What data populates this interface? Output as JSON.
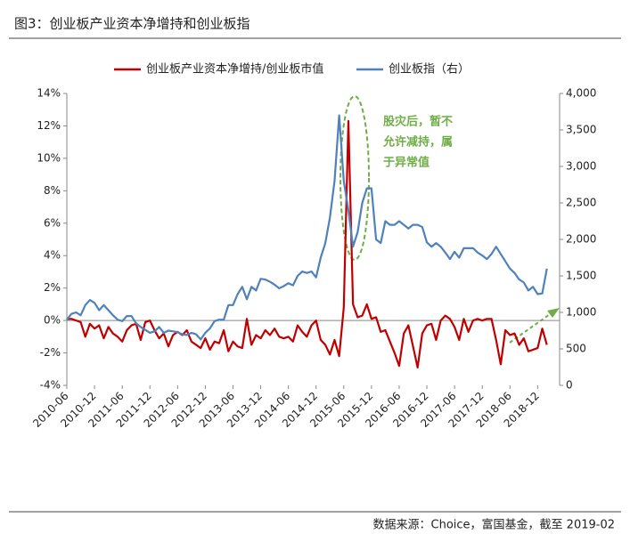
{
  "chart_data": {
    "type": "line",
    "title": "图3：创业板产业资本净增持和创业板指",
    "source": "数据来源：Choice，富国基金，截至 2019-02",
    "annotation": [
      "股灾后，暂不",
      "允许减持，属",
      "于异常值"
    ],
    "categories": [
      "2010-06",
      null,
      null,
      null,
      null,
      null,
      "2010-12",
      null,
      null,
      null,
      null,
      null,
      "2011-06",
      null,
      null,
      null,
      null,
      null,
      "2011-12",
      null,
      null,
      null,
      null,
      null,
      "2012-06",
      null,
      null,
      null,
      null,
      null,
      "2012-12",
      null,
      null,
      null,
      null,
      null,
      "2013-06",
      null,
      null,
      null,
      null,
      null,
      "2013-12",
      null,
      null,
      null,
      null,
      null,
      "2014-06",
      null,
      null,
      null,
      null,
      null,
      "2014-12",
      null,
      null,
      null,
      null,
      null,
      "2015-06",
      null,
      null,
      null,
      null,
      null,
      "2015-12",
      null,
      null,
      null,
      null,
      null,
      "2016-06",
      null,
      null,
      null,
      null,
      null,
      "2016-12",
      null,
      null,
      null,
      null,
      null,
      "2017-06",
      null,
      null,
      null,
      null,
      null,
      "2017-12",
      null,
      null,
      null,
      null,
      null,
      "2018-06",
      null,
      null,
      null,
      null,
      null,
      "2018-12",
      null,
      null
    ],
    "series": [
      {
        "name": "创业板产业资本净增持/创业板市值",
        "color": "#c00000",
        "axis": "y",
        "values": [
          0.1,
          0.1,
          0.0,
          -0.1,
          -1.0,
          -0.2,
          -0.5,
          -0.3,
          -1.1,
          -0.4,
          -0.8,
          -1.0,
          -1.3,
          -0.6,
          -0.3,
          -0.2,
          -1.2,
          -0.1,
          0.0,
          -0.6,
          -1.1,
          -0.8,
          -1.6,
          -0.9,
          -0.7,
          -0.9,
          -0.6,
          -1.3,
          -1.5,
          -1.7,
          -1.1,
          -1.8,
          -1.3,
          -1.4,
          -0.6,
          -1.9,
          -1.3,
          -1.6,
          -1.7,
          0.1,
          -1.5,
          -0.9,
          -1.1,
          -0.6,
          -0.9,
          -0.5,
          -1.0,
          -1.1,
          -1.0,
          -1.3,
          -0.3,
          -0.7,
          -1.0,
          -0.3,
          0.0,
          -1.2,
          -1.5,
          -2.1,
          -1.2,
          -2.2,
          0.8,
          12.3,
          1.0,
          0.2,
          0.3,
          1.0,
          0.1,
          0.2,
          -0.7,
          -0.6,
          -1.3,
          -2.0,
          -2.8,
          -0.8,
          -0.3,
          -1.6,
          -2.9,
          -0.8,
          -0.3,
          -0.2,
          -1.2,
          0.0,
          0.3,
          0.1,
          -0.4,
          -1.2,
          0.1,
          -0.7,
          0.0,
          0.1,
          0.0,
          0.1,
          0.1,
          -1.2,
          -2.7,
          -0.6,
          -0.9,
          -0.8,
          -1.5,
          -1.1,
          -1.9,
          -1.8,
          -1.7,
          -0.5,
          -1.5
        ]
      },
      {
        "name": "创业板指（右）",
        "color": "#4f81bd",
        "axis": "y2",
        "values": [
          900,
          980,
          1000,
          960,
          1100,
          1170,
          1130,
          1030,
          1100,
          1030,
          960,
          900,
          880,
          950,
          950,
          850,
          800,
          760,
          720,
          740,
          800,
          720,
          750,
          740,
          730,
          700,
          690,
          720,
          700,
          630,
          720,
          780,
          880,
          900,
          900,
          1100,
          1100,
          1250,
          1350,
          1180,
          1350,
          1300,
          1460,
          1450,
          1420,
          1380,
          1330,
          1360,
          1400,
          1370,
          1500,
          1560,
          1540,
          1560,
          1480,
          1750,
          1950,
          2300,
          2800,
          3700,
          2800,
          2400,
          1900,
          2100,
          2500,
          2700,
          2700,
          2000,
          1950,
          2250,
          2200,
          2200,
          2250,
          2200,
          2150,
          2200,
          2200,
          2170,
          1960,
          1900,
          1950,
          1900,
          1820,
          1730,
          1830,
          1750,
          1880,
          1880,
          1880,
          1820,
          1780,
          1730,
          1800,
          1900,
          1800,
          1700,
          1600,
          1540,
          1450,
          1410,
          1300,
          1350,
          1250,
          1260,
          1600
        ]
      }
    ],
    "ylim": [
      -4,
      14
    ],
    "yticks": [
      {
        "value": -4,
        "label": "-4%"
      },
      {
        "value": -2,
        "label": "-2%"
      },
      {
        "value": 0,
        "label": "0%"
      },
      {
        "value": 2,
        "label": "2%"
      },
      {
        "value": 4,
        "label": "4%"
      },
      {
        "value": 6,
        "label": "6%"
      },
      {
        "value": 8,
        "label": "8%"
      },
      {
        "value": 10,
        "label": "10%"
      },
      {
        "value": 12,
        "label": "12%"
      },
      {
        "value": 14,
        "label": "14%"
      }
    ],
    "y2lim": [
      0,
      4000
    ],
    "y2ticks": [
      0,
      500,
      {
        "value": 1000,
        "label": "1,000"
      },
      {
        "value": 1500,
        "label": "1,500"
      },
      {
        "value": 2000,
        "label": "2,000"
      },
      {
        "value": 2500,
        "label": "2,500"
      },
      {
        "value": 3000,
        "label": "3,000"
      },
      {
        "value": 3500,
        "label": "3,500"
      },
      {
        "value": 4000,
        "label": "4,000"
      }
    ],
    "grid": false,
    "legend": "top"
  }
}
